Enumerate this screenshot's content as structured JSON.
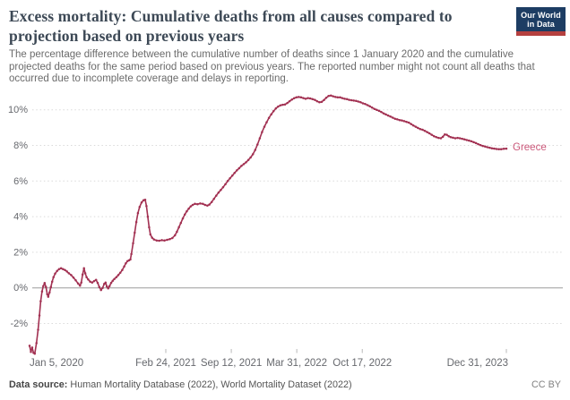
{
  "header": {
    "title": "Excess mortality: Cumulative deaths from all causes compared to projection based on previous years",
    "subtitle": "The percentage difference between the cumulative number of deaths since 1 January 2020 and the cumulative projected deaths for the same period based on previous years. The reported number might not count all deaths that occurred due to incomplete coverage and delays in reporting.",
    "logo": {
      "line1": "Our World",
      "line2": "in Data",
      "bg_color": "#1d3d63",
      "accent_color": "#b5403f"
    }
  },
  "footer": {
    "source_label": "Data source:",
    "source_text": " Human Mortality Database (2022), World Mortality Dataset (2022)",
    "license": "CC BY"
  },
  "colors": {
    "line": "#a23152",
    "end_label": "#cb587a",
    "gridline": "#dadada",
    "zero_line": "#9c9c9c",
    "axis_text": "#67696e",
    "tick_mark": "#b9b9b9"
  },
  "chart_data": {
    "type": "line",
    "title": "Excess mortality: Cumulative deaths from all causes compared to projection based on previous years",
    "xlabel": "",
    "ylabel": "",
    "y_unit": "%",
    "ylim": [
      -4.2,
      11.3
    ],
    "grid": "dotted horizontal",
    "legend_position": "line-end",
    "y_axis": {
      "ticks": [
        {
          "v": 10,
          "label": "10%"
        },
        {
          "v": 8,
          "label": "8%"
        },
        {
          "v": 6,
          "label": "6%"
        },
        {
          "v": 4,
          "label": "4%"
        },
        {
          "v": 2,
          "label": "2%"
        },
        {
          "v": 0,
          "label": "0%"
        },
        {
          "v": -2,
          "label": "-2%"
        }
      ]
    },
    "x_axis": {
      "unit": "date",
      "range_days": [
        0,
        1456
      ],
      "ticks": [
        {
          "day": 0,
          "label": "Jan 5, 2020",
          "align": "start",
          "tick_mark": false
        },
        {
          "day": 416,
          "label": "Feb 24, 2021",
          "align": "middle",
          "tick_mark": true
        },
        {
          "day": 616,
          "label": "Sep 12, 2021",
          "align": "middle",
          "tick_mark": true
        },
        {
          "day": 816,
          "label": "Mar 31, 2022",
          "align": "middle",
          "tick_mark": true
        },
        {
          "day": 1016,
          "label": "Oct 17, 2022",
          "align": "middle",
          "tick_mark": true
        },
        {
          "day": 1456,
          "label": "Dec 31, 2023",
          "align": "end",
          "tick_mark": true
        }
      ]
    },
    "series": [
      {
        "name": "Greece",
        "color": "#a23152",
        "label_color": "#cb587a",
        "points": [
          [
            0,
            -3.25
          ],
          [
            4,
            -3.6
          ],
          [
            8,
            -3.35
          ],
          [
            12,
            -3.65
          ],
          [
            16,
            -3.7
          ],
          [
            21,
            -3.1
          ],
          [
            26,
            -2.35
          ],
          [
            30,
            -1.55
          ],
          [
            34,
            -0.75
          ],
          [
            38,
            -0.2
          ],
          [
            42,
            0.1
          ],
          [
            46,
            0.27
          ],
          [
            50,
            0.05
          ],
          [
            54,
            -0.35
          ],
          [
            57,
            -0.5
          ],
          [
            61,
            -0.25
          ],
          [
            65,
            0.05
          ],
          [
            69,
            0.35
          ],
          [
            73,
            0.6
          ],
          [
            78,
            0.8
          ],
          [
            84,
            0.95
          ],
          [
            90,
            1.05
          ],
          [
            96,
            1.1
          ],
          [
            102,
            1.05
          ],
          [
            108,
            1.0
          ],
          [
            114,
            0.92
          ],
          [
            120,
            0.82
          ],
          [
            127,
            0.72
          ],
          [
            134,
            0.58
          ],
          [
            141,
            0.42
          ],
          [
            148,
            0.25
          ],
          [
            154,
            0.12
          ],
          [
            158,
            0.3
          ],
          [
            162,
            0.75
          ],
          [
            166,
            1.1
          ],
          [
            170,
            0.82
          ],
          [
            174,
            0.6
          ],
          [
            179,
            0.47
          ],
          [
            185,
            0.35
          ],
          [
            191,
            0.3
          ],
          [
            197,
            0.38
          ],
          [
            203,
            0.45
          ],
          [
            208,
            0.28
          ],
          [
            213,
            0.05
          ],
          [
            218,
            -0.12
          ],
          [
            223,
            0.0
          ],
          [
            228,
            0.22
          ],
          [
            232,
            0.3
          ],
          [
            236,
            0.08
          ],
          [
            240,
            -0.03
          ],
          [
            244,
            0.1
          ],
          [
            249,
            0.28
          ],
          [
            254,
            0.4
          ],
          [
            259,
            0.5
          ],
          [
            265,
            0.6
          ],
          [
            271,
            0.72
          ],
          [
            277,
            0.85
          ],
          [
            283,
            1.0
          ],
          [
            289,
            1.2
          ],
          [
            294,
            1.38
          ],
          [
            299,
            1.5
          ],
          [
            304,
            1.55
          ],
          [
            308,
            1.6
          ],
          [
            311,
            1.9
          ],
          [
            316,
            2.5
          ],
          [
            321,
            3.1
          ],
          [
            326,
            3.7
          ],
          [
            331,
            4.2
          ],
          [
            336,
            4.55
          ],
          [
            342,
            4.8
          ],
          [
            348,
            4.92
          ],
          [
            353,
            4.95
          ],
          [
            357,
            4.6
          ],
          [
            361,
            4.0
          ],
          [
            365,
            3.4
          ],
          [
            369,
            3.0
          ],
          [
            374,
            2.82
          ],
          [
            380,
            2.72
          ],
          [
            388,
            2.66
          ],
          [
            396,
            2.65
          ],
          [
            404,
            2.68
          ],
          [
            412,
            2.66
          ],
          [
            420,
            2.7
          ],
          [
            428,
            2.74
          ],
          [
            436,
            2.8
          ],
          [
            444,
            2.95
          ],
          [
            450,
            3.15
          ],
          [
            456,
            3.4
          ],
          [
            462,
            3.65
          ],
          [
            468,
            3.9
          ],
          [
            474,
            4.12
          ],
          [
            480,
            4.3
          ],
          [
            486,
            4.45
          ],
          [
            492,
            4.58
          ],
          [
            498,
            4.66
          ],
          [
            505,
            4.72
          ],
          [
            513,
            4.7
          ],
          [
            521,
            4.74
          ],
          [
            529,
            4.72
          ],
          [
            536,
            4.66
          ],
          [
            543,
            4.62
          ],
          [
            549,
            4.68
          ],
          [
            556,
            4.82
          ],
          [
            563,
            5.0
          ],
          [
            570,
            5.18
          ],
          [
            577,
            5.35
          ],
          [
            584,
            5.5
          ],
          [
            591,
            5.65
          ],
          [
            598,
            5.82
          ],
          [
            605,
            6.0
          ],
          [
            612,
            6.15
          ],
          [
            619,
            6.3
          ],
          [
            626,
            6.45
          ],
          [
            633,
            6.6
          ],
          [
            640,
            6.72
          ],
          [
            647,
            6.85
          ],
          [
            654,
            6.95
          ],
          [
            661,
            7.05
          ],
          [
            668,
            7.18
          ],
          [
            675,
            7.32
          ],
          [
            682,
            7.5
          ],
          [
            689,
            7.75
          ],
          [
            696,
            8.05
          ],
          [
            703,
            8.4
          ],
          [
            710,
            8.75
          ],
          [
            717,
            9.05
          ],
          [
            724,
            9.3
          ],
          [
            731,
            9.55
          ],
          [
            738,
            9.75
          ],
          [
            745,
            9.92
          ],
          [
            752,
            10.08
          ],
          [
            759,
            10.18
          ],
          [
            766,
            10.25
          ],
          [
            773,
            10.28
          ],
          [
            780,
            10.3
          ],
          [
            787,
            10.38
          ],
          [
            794,
            10.48
          ],
          [
            801,
            10.58
          ],
          [
            808,
            10.65
          ],
          [
            815,
            10.7
          ],
          [
            822,
            10.72
          ],
          [
            829,
            10.7
          ],
          [
            836,
            10.66
          ],
          [
            843,
            10.62
          ],
          [
            850,
            10.66
          ],
          [
            857,
            10.64
          ],
          [
            864,
            10.6
          ],
          [
            871,
            10.56
          ],
          [
            878,
            10.48
          ],
          [
            885,
            10.42
          ],
          [
            892,
            10.44
          ],
          [
            899,
            10.55
          ],
          [
            906,
            10.68
          ],
          [
            913,
            10.78
          ],
          [
            920,
            10.8
          ],
          [
            927,
            10.76
          ],
          [
            934,
            10.72
          ],
          [
            941,
            10.7
          ],
          [
            948,
            10.7
          ],
          [
            955,
            10.66
          ],
          [
            962,
            10.62
          ],
          [
            969,
            10.6
          ],
          [
            976,
            10.56
          ],
          [
            983,
            10.54
          ],
          [
            990,
            10.52
          ],
          [
            997,
            10.5
          ],
          [
            1004,
            10.46
          ],
          [
            1011,
            10.42
          ],
          [
            1018,
            10.36
          ],
          [
            1025,
            10.32
          ],
          [
            1032,
            10.26
          ],
          [
            1039,
            10.2
          ],
          [
            1046,
            10.12
          ],
          [
            1053,
            10.05
          ],
          [
            1060,
            10.0
          ],
          [
            1067,
            9.94
          ],
          [
            1074,
            9.88
          ],
          [
            1081,
            9.8
          ],
          [
            1088,
            9.74
          ],
          [
            1095,
            9.68
          ],
          [
            1102,
            9.62
          ],
          [
            1109,
            9.56
          ],
          [
            1116,
            9.5
          ],
          [
            1123,
            9.46
          ],
          [
            1130,
            9.42
          ],
          [
            1137,
            9.4
          ],
          [
            1144,
            9.36
          ],
          [
            1151,
            9.32
          ],
          [
            1158,
            9.28
          ],
          [
            1165,
            9.2
          ],
          [
            1172,
            9.12
          ],
          [
            1179,
            9.05
          ],
          [
            1186,
            8.98
          ],
          [
            1193,
            8.92
          ],
          [
            1200,
            8.88
          ],
          [
            1207,
            8.82
          ],
          [
            1214,
            8.75
          ],
          [
            1221,
            8.68
          ],
          [
            1228,
            8.6
          ],
          [
            1235,
            8.52
          ],
          [
            1242,
            8.46
          ],
          [
            1249,
            8.42
          ],
          [
            1256,
            8.4
          ],
          [
            1262,
            8.48
          ],
          [
            1268,
            8.62
          ],
          [
            1274,
            8.6
          ],
          [
            1280,
            8.52
          ],
          [
            1286,
            8.46
          ],
          [
            1293,
            8.43
          ],
          [
            1300,
            8.4
          ],
          [
            1307,
            8.42
          ],
          [
            1314,
            8.4
          ],
          [
            1321,
            8.37
          ],
          [
            1328,
            8.34
          ],
          [
            1335,
            8.3
          ],
          [
            1342,
            8.27
          ],
          [
            1349,
            8.23
          ],
          [
            1356,
            8.18
          ],
          [
            1363,
            8.13
          ],
          [
            1370,
            8.07
          ],
          [
            1377,
            8.02
          ],
          [
            1384,
            7.97
          ],
          [
            1391,
            7.94
          ],
          [
            1398,
            7.9
          ],
          [
            1405,
            7.87
          ],
          [
            1412,
            7.84
          ],
          [
            1419,
            7.82
          ],
          [
            1426,
            7.8
          ],
          [
            1433,
            7.79
          ],
          [
            1440,
            7.79
          ],
          [
            1448,
            7.81
          ],
          [
            1456,
            7.82
          ]
        ]
      }
    ]
  }
}
